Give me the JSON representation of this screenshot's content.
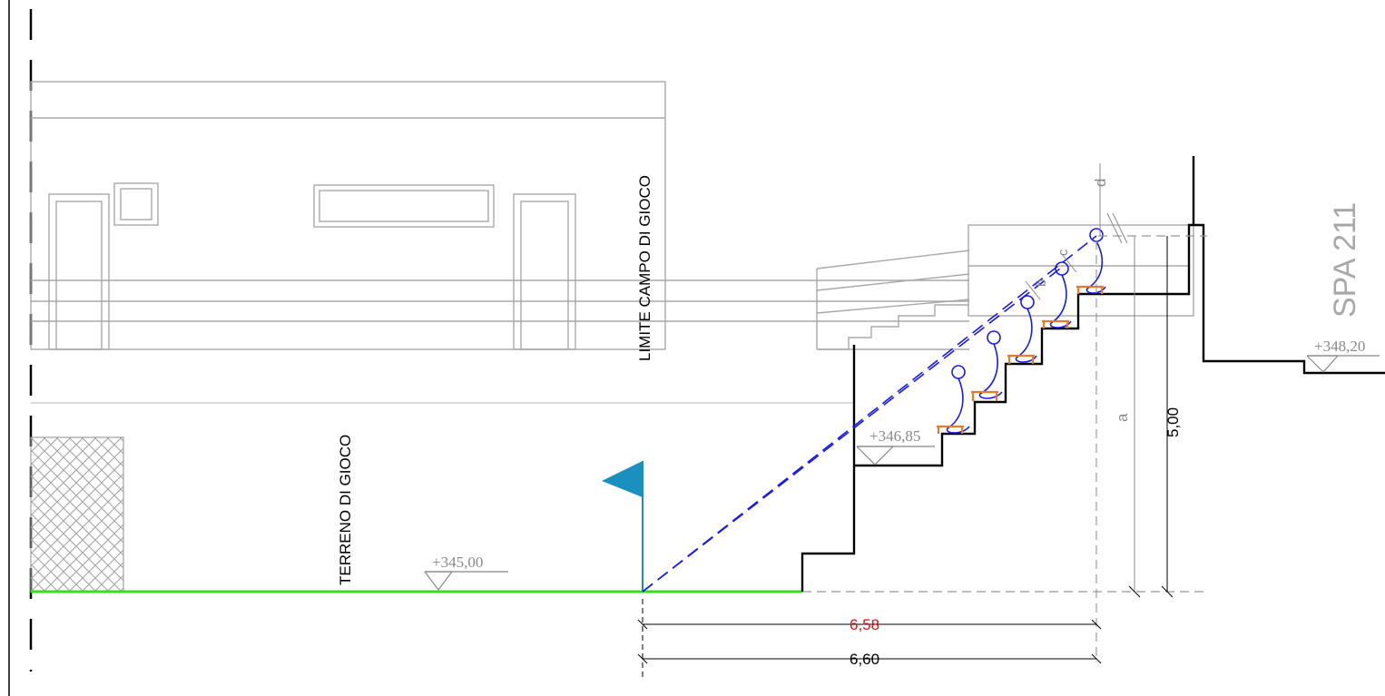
{
  "labels": {
    "field": "TERRENO  DI  GIOCO",
    "field_limit": "LIMITE  CAMPO  DI  GIOCO",
    "road": "SPA 211"
  },
  "elevations": {
    "ground": "+345,00",
    "stand_base": "+346,85",
    "road": "+348,20"
  },
  "dimensions": {
    "horizontal_top": "6,58",
    "horizontal_bottom": "6,60",
    "vertical_total": "5,00",
    "letter_a": "a",
    "letter_b": "b",
    "letter_c": "c",
    "letter_d": "d"
  },
  "colors": {
    "ground_line": "#33e01a",
    "sightline": "#1a1ae6",
    "flag": "#1b8fbf",
    "highlight_dimension": "#e01010",
    "seat": "#e87b2a"
  },
  "icons": {
    "flag": "corner-flag-icon",
    "elevation_marker": "triangle-level-icon"
  }
}
